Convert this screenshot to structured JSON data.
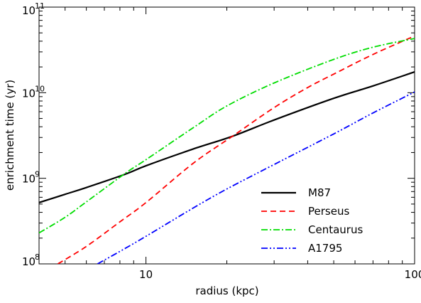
{
  "chart_data": {
    "type": "line",
    "xlabel": "radius (kpc)",
    "ylabel": "enrichment time (yr)",
    "xscale": "log",
    "yscale": "log",
    "xlim": [
      4,
      100
    ],
    "ylim": [
      100000000.0,
      100000000000.0
    ],
    "x_ticks": [
      {
        "value": 10,
        "label": "10"
      },
      {
        "value": 100,
        "label": "100"
      }
    ],
    "y_ticks": [
      {
        "value": 100000000.0,
        "base": "10",
        "exp": "8"
      },
      {
        "value": 1000000000.0,
        "base": "10",
        "exp": "9"
      },
      {
        "value": 10000000000.0,
        "base": "10",
        "exp": "10"
      },
      {
        "value": 100000000000.0,
        "base": "10",
        "exp": "11"
      }
    ],
    "legend_position": "bottom-right",
    "series": [
      {
        "name": "M87",
        "color": "#000000",
        "style": "solid",
        "x": [
          4,
          5,
          6,
          8.4,
          10,
          15,
          21,
          30,
          50,
          70,
          100
        ],
        "y": [
          520000000.0,
          650000000.0,
          780000000.0,
          1120000000.0,
          1400000000.0,
          2200000000.0,
          3100000000.0,
          4800000000.0,
          8600000000.0,
          12000000000.0,
          17500000000.0
        ]
      },
      {
        "name": "Perseus",
        "color": "#ff0000",
        "style": "dash",
        "x": [
          4.7,
          6,
          8,
          10,
          15,
          21,
          30,
          40,
          50,
          70,
          100
        ],
        "y": [
          100000000.0,
          160000000.0,
          310000000.0,
          520000000.0,
          1500000000.0,
          3100000000.0,
          6700000000.0,
          11500000000.0,
          16500000000.0,
          28000000000.0,
          46000000000.0
        ]
      },
      {
        "name": "Centaurus",
        "color": "#00dd00",
        "style": "dashdot",
        "x": [
          4,
          5,
          6,
          8.4,
          10,
          15,
          20,
          30,
          50,
          70,
          100
        ],
        "y": [
          230000000.0,
          350000000.0,
          530000000.0,
          1150000000.0,
          1650000000.0,
          3900000000.0,
          7000000000.0,
          13000000000.0,
          24500000000.0,
          34000000000.0,
          43000000000.0
        ]
      },
      {
        "name": "A1795",
        "color": "#0000ff",
        "style": "dashdotdot",
        "x": [
          6.6,
          8,
          10,
          15,
          20,
          30,
          50,
          70,
          100
        ],
        "y": [
          100000000.0,
          140000000.0,
          210000000.0,
          450000000.0,
          750000000.0,
          1450000000.0,
          3300000000.0,
          5800000000.0,
          10200000000.0
        ]
      }
    ]
  }
}
